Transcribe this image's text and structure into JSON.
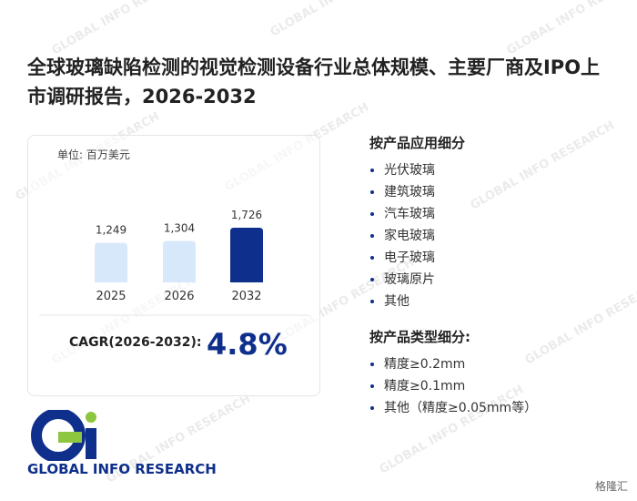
{
  "title": "全球玻璃缺陷检测的视觉检测设备行业总体规模、主要厂商及IPO上市调研报告，2026-2032",
  "chart_data": {
    "type": "bar",
    "subtitle": "单位: 百万美元",
    "categories": [
      "2025",
      "2026",
      "2032"
    ],
    "values": [
      1249,
      1304,
      1726
    ],
    "value_labels": [
      "1,249",
      "1,304",
      "1,726"
    ],
    "colors": [
      "#d6e8fa",
      "#d6e8fa",
      "#0f2f8c"
    ]
  },
  "cagr": {
    "label": "CAGR(2026-2032):",
    "value": "4.8%"
  },
  "sections": [
    {
      "heading": "按产品应用细分",
      "items": [
        "光伏玻璃",
        "建筑玻璃",
        "汽车玻璃",
        "家电玻璃",
        "电子玻璃",
        "玻璃原片",
        "其他"
      ]
    },
    {
      "heading": "按产品类型细分:",
      "items": [
        "精度≥0.2mm",
        "精度≥0.1mm",
        "其他（精度≥0.05mm等）"
      ]
    }
  ],
  "logo": {
    "text": "GLOBAL INFO RESEARCH"
  },
  "watermark": "GLOBAL INFO RESEARCH",
  "source_badge": "格隆汇"
}
